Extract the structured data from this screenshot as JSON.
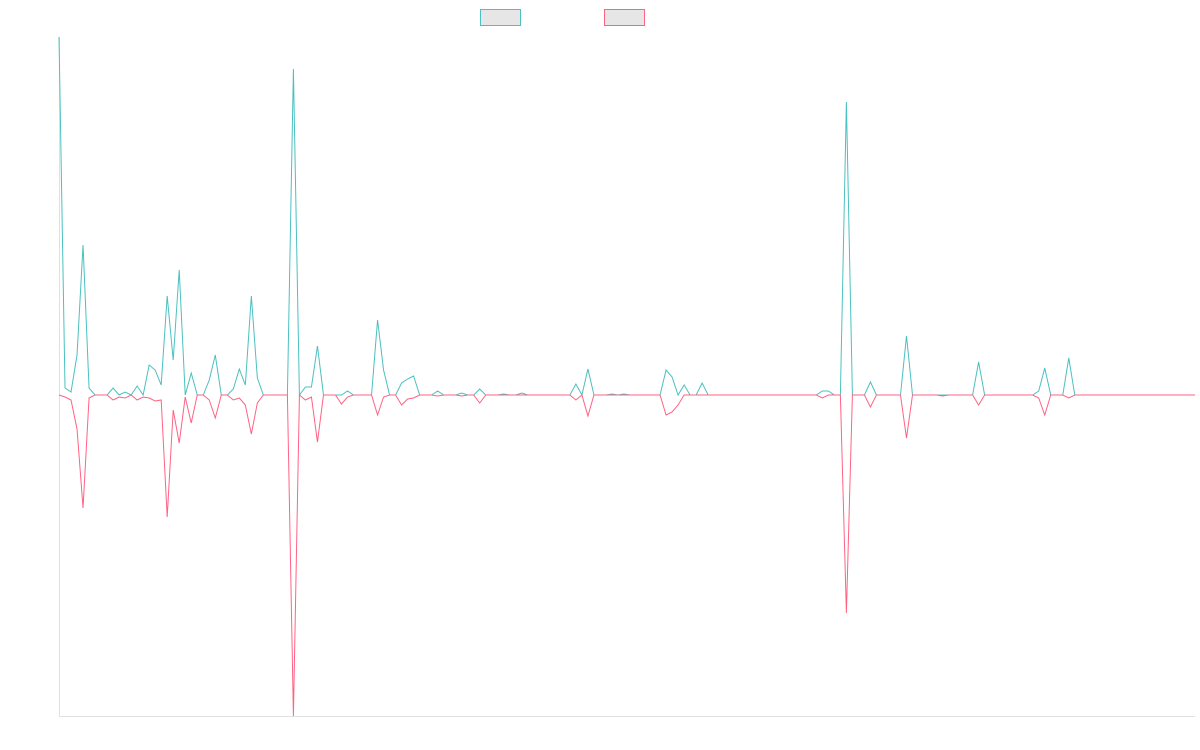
{
  "chart_data": {
    "type": "line",
    "series": [
      {
        "color": "#4bc0c0",
        "values": [
          358,
          7,
          3,
          40,
          150,
          7,
          0,
          0,
          0,
          7,
          0,
          3,
          0,
          9,
          0,
          30,
          25,
          10,
          99,
          35,
          125,
          0,
          22,
          0,
          0,
          15,
          40,
          0,
          0,
          6,
          26,
          10,
          99,
          17,
          0,
          0,
          0,
          0,
          0,
          326,
          0,
          8,
          8,
          49,
          0,
          0,
          0,
          0,
          4,
          0,
          0,
          0,
          0,
          75,
          25,
          0,
          0,
          12,
          16,
          19,
          0,
          0,
          0,
          4,
          0,
          0,
          0,
          2,
          0,
          0,
          6,
          0,
          0,
          0,
          1,
          0,
          0,
          2,
          0,
          0,
          0,
          0,
          0,
          0,
          0,
          0,
          11,
          0,
          26,
          0,
          0,
          0,
          1,
          0,
          1,
          0,
          0,
          0,
          0,
          0,
          0,
          25,
          18,
          0,
          10,
          0,
          0,
          12,
          0,
          0,
          0,
          0,
          0,
          0,
          0,
          0,
          0,
          0,
          0,
          0,
          0,
          0,
          0,
          0,
          0,
          0,
          0,
          4,
          4,
          0,
          0,
          293,
          0,
          0,
          0,
          13,
          0,
          0,
          0,
          0,
          0,
          59,
          0,
          0,
          0,
          0,
          0,
          0,
          0,
          0,
          0,
          0,
          0,
          33,
          0,
          0,
          0,
          0,
          0,
          0,
          0,
          0,
          0,
          4,
          27,
          0,
          0,
          0,
          37,
          0,
          0,
          0,
          0,
          0,
          0,
          0,
          0,
          0,
          0,
          0,
          0,
          0,
          0,
          0,
          0,
          0,
          0,
          0,
          0,
          0
        ]
      },
      {
        "color": "#ff6384",
        "values": [
          0,
          -2,
          -5,
          -34,
          -113,
          -3,
          0,
          0,
          0,
          -5,
          -2,
          -3,
          0,
          -5,
          -2,
          -3,
          -6,
          -5,
          -122,
          -15,
          -48,
          -2,
          -28,
          0,
          0,
          -5,
          -23,
          0,
          0,
          -5,
          -3,
          -10,
          -39,
          -8,
          0,
          0,
          0,
          0,
          0,
          -321,
          0,
          -5,
          -2,
          -47,
          0,
          0,
          0,
          -9,
          -2,
          0,
          0,
          0,
          0,
          -20,
          -2,
          0,
          0,
          -10,
          -4,
          -3,
          0,
          0,
          0,
          -1,
          0,
          0,
          0,
          -1,
          0,
          0,
          -8,
          0,
          0,
          0,
          0,
          0,
          0,
          0,
          0,
          0,
          0,
          0,
          0,
          0,
          0,
          0,
          -5,
          0,
          -21,
          0,
          0,
          0,
          0,
          0,
          0,
          0,
          0,
          0,
          0,
          0,
          0,
          -20,
          -17,
          -10,
          0,
          0,
          0,
          0,
          0,
          0,
          0,
          0,
          0,
          0,
          0,
          0,
          0,
          0,
          0,
          0,
          0,
          0,
          0,
          0,
          0,
          0,
          0,
          -3,
          0,
          0,
          0,
          -218,
          0,
          0,
          0,
          -12,
          0,
          0,
          0,
          0,
          0,
          -43,
          0,
          0,
          0,
          0,
          0,
          -1,
          0,
          0,
          0,
          0,
          0,
          -10,
          0,
          0,
          0,
          0,
          0,
          0,
          0,
          0,
          0,
          -3,
          -20,
          0,
          0,
          0,
          -3,
          0,
          0,
          0,
          0,
          0,
          0,
          0,
          0,
          0,
          0,
          0,
          0,
          0,
          0,
          0,
          0,
          0,
          0,
          0,
          0,
          0
        ]
      }
    ],
    "ylim": [
      -321,
      358
    ],
    "grid": false,
    "legend": "top"
  }
}
